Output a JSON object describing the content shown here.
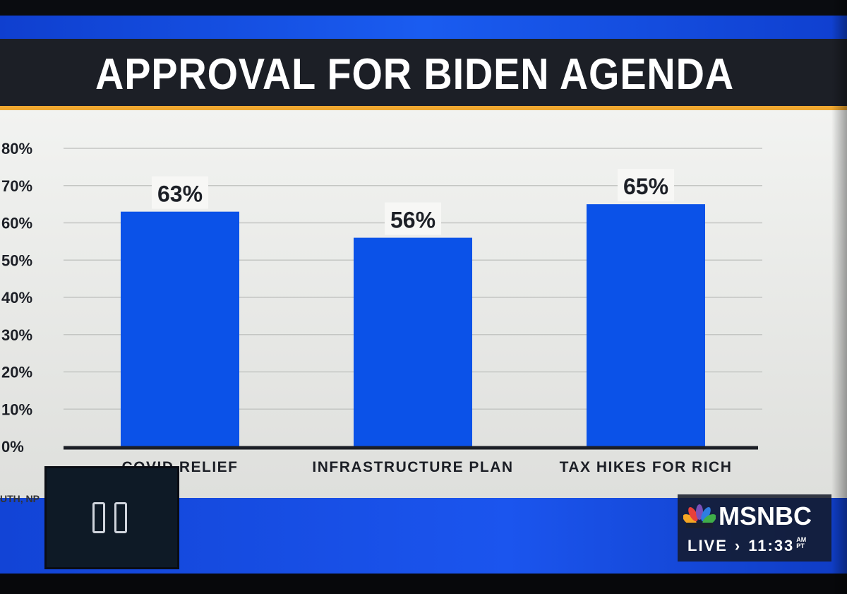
{
  "chart_data": {
    "type": "bar",
    "title": "APPROVAL FOR BIDEN AGENDA",
    "categories": [
      "COVID RELIEF",
      "INFRASTRUCTURE PLAN",
      "TAX HIKES FOR RICH"
    ],
    "values": [
      63,
      56,
      65
    ],
    "value_labels": [
      "63%",
      "56%",
      "65%"
    ],
    "ylim": [
      0,
      80
    ],
    "yticks": [
      "0%",
      "10%",
      "20%",
      "30%",
      "40%",
      "50%",
      "60%",
      "70%",
      "80%"
    ],
    "grid": true,
    "bar_color": "#0b52e8"
  },
  "source_fragment": "UTH, NP",
  "network": {
    "logo": "MSNBC",
    "live_label": "LIVE",
    "separator": "›",
    "time": "11:33",
    "am": "AM",
    "pt": "PT"
  },
  "icons": {
    "pause": "pause-icon",
    "peacock": "peacock-icon"
  },
  "colors": {
    "accent_blue": "#1b55ee",
    "title_bar": "#1c1f26",
    "gold": "#f0a830"
  }
}
